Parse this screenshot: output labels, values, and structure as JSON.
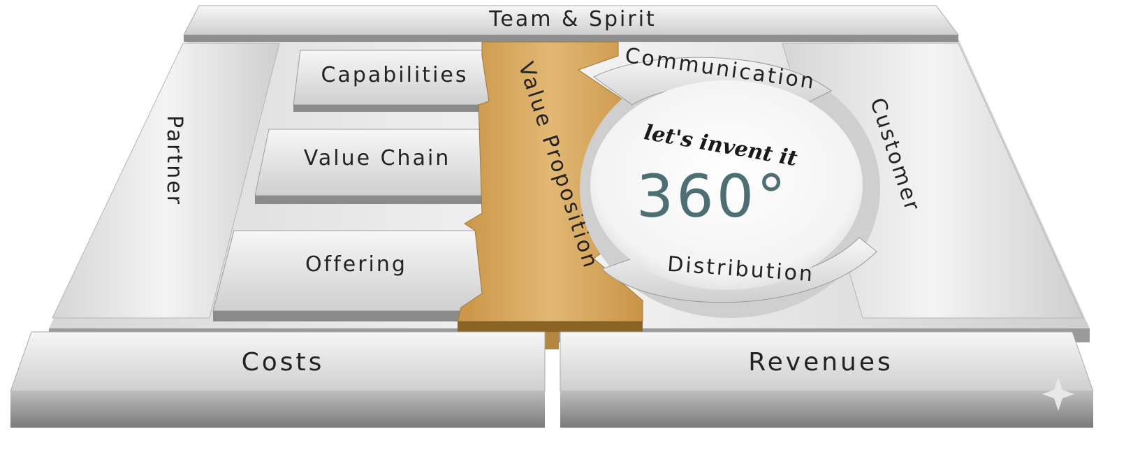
{
  "diagram": {
    "top_bar": "Team & Spirit",
    "partner": "Partner",
    "blocks": [
      "Capabilities",
      "Value Chain",
      "Offering"
    ],
    "value_proposition": "Value Proposition",
    "communication": "Communication",
    "customer": "Customer",
    "distribution": "Distribution",
    "center_tagline": "let's invent it",
    "center_value": "360°",
    "costs": "Costs",
    "revenues": "Revenues"
  },
  "colors": {
    "metal_light": "#f4f4f4",
    "metal_mid": "#c9c9c9",
    "metal_dark": "#8c8c8c",
    "gold": "#d9aa5f",
    "gold_dark": "#8a6424",
    "teal_text": "#4d6f73"
  }
}
